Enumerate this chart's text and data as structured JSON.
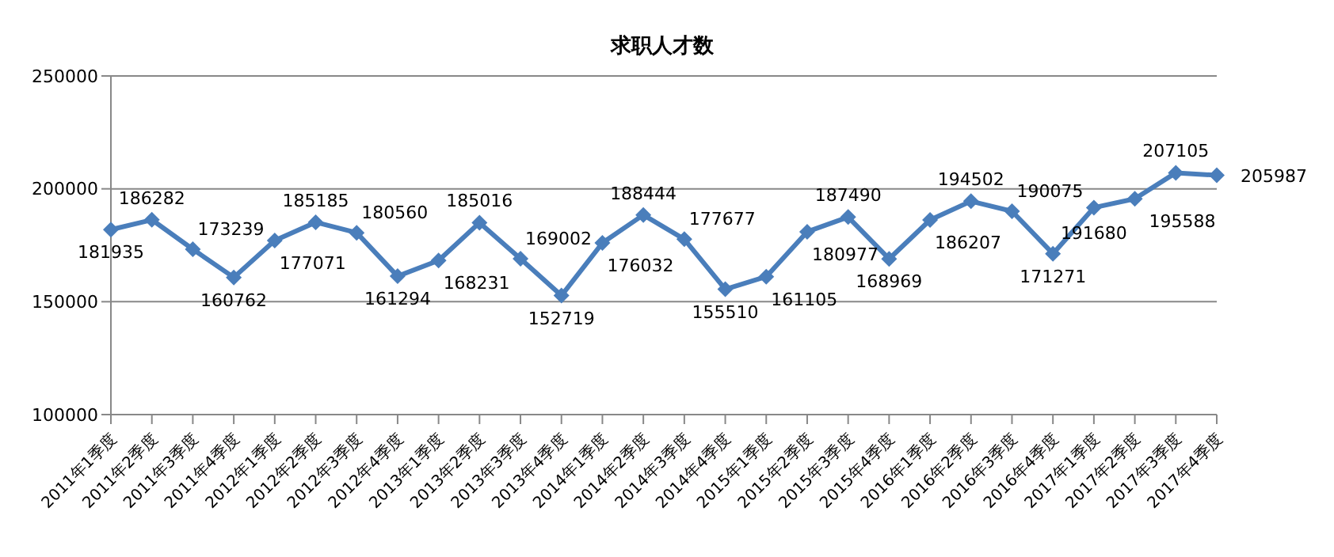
{
  "chart_data": {
    "type": "line",
    "title": "求职人才数",
    "categories": [
      "2011年1季度",
      "2011年2季度",
      "2011年3季度",
      "2011年4季度",
      "2012年1季度",
      "2012年2季度",
      "2012年3季度",
      "2012年4季度",
      "2013年1季度",
      "2013年2季度",
      "2013年3季度",
      "2013年4季度",
      "2014年1季度",
      "2014年2季度",
      "2014年3季度",
      "2014年4季度",
      "2015年1季度",
      "2015年2季度",
      "2015年3季度",
      "2015年4季度",
      "2016年1季度",
      "2016年2季度",
      "2016年3季度",
      "2016年4季度",
      "2017年1季度",
      "2017年2季度",
      "2017年3季度",
      "2017年4季度"
    ],
    "values": [
      181935,
      186282,
      173239,
      160762,
      177071,
      185185,
      180560,
      161294,
      168231,
      185016,
      169002,
      152719,
      176032,
      188444,
      177677,
      155510,
      161105,
      180977,
      187490,
      168969,
      186207,
      194502,
      190075,
      171271,
      191680,
      195588,
      207105,
      205987
    ],
    "color": "#4a7ebb",
    "ylim": [
      100000,
      250000
    ],
    "yticks": [
      100000,
      150000,
      200000,
      250000
    ],
    "grid": "y",
    "marker": "diamond",
    "line_style": "solid",
    "data_labels": true,
    "legend": false
  }
}
